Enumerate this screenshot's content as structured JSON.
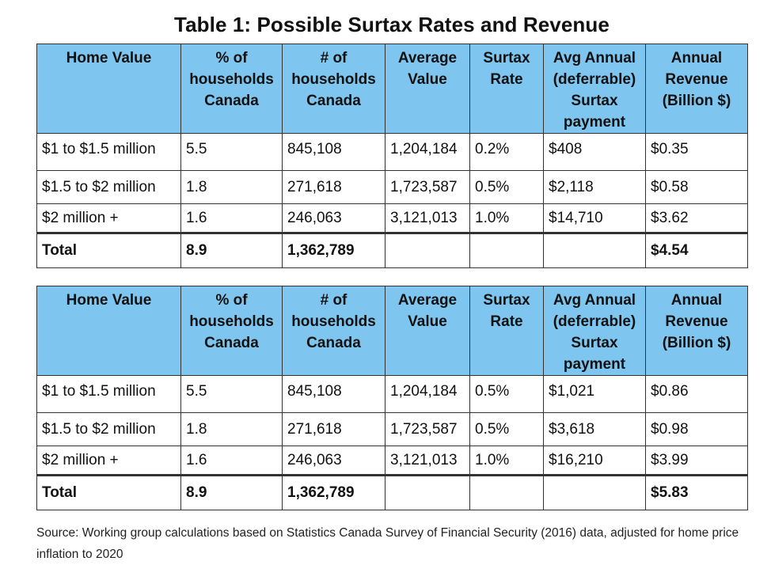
{
  "title": "Table 1: Possible Surtax Rates and Revenue",
  "headers": [
    "Home Value",
    "% of households Canada",
    "# of households Canada",
    "Average Value",
    "Surtax Rate",
    "Avg Annual (deferrable) Surtax payment",
    "Annual Revenue (Billion $)"
  ],
  "tables": [
    {
      "rows": [
        [
          "$1 to $1.5 million",
          "5.5",
          "845,108",
          "1,204,184",
          "0.2%",
          "$408",
          "$0.35"
        ],
        [
          "$1.5 to $2 million",
          "1.8",
          "271,618",
          "1,723,587",
          "0.5%",
          "$2,118",
          "$0.58"
        ],
        [
          "$2 million +",
          "1.6",
          "246,063",
          "3,121,013",
          "1.0%",
          "$14,710",
          "$3.62"
        ]
      ],
      "total": [
        "Total",
        "8.9",
        "1,362,789",
        "",
        "",
        "",
        "$4.54"
      ]
    },
    {
      "rows": [
        [
          "$1 to $1.5 million",
          "5.5",
          "845,108",
          "1,204,184",
          "0.5%",
          "$1,021",
          "$0.86"
        ],
        [
          "$1.5 to $2 million",
          "1.8",
          "271,618",
          "1,723,587",
          "0.5%",
          "$3,618",
          "$0.98"
        ],
        [
          "$2 million +",
          "1.6",
          "246,063",
          "3,121,013",
          "1.0%",
          "$16,210",
          "$3.99"
        ]
      ],
      "total": [
        "Total",
        "8.9",
        "1,362,789",
        "",
        "",
        "",
        "$5.83"
      ]
    }
  ],
  "source": "Source: Working group calculations based on Statistics Canada Survey of Financial Security (2016) data, adjusted for home price inflation to 2020"
}
